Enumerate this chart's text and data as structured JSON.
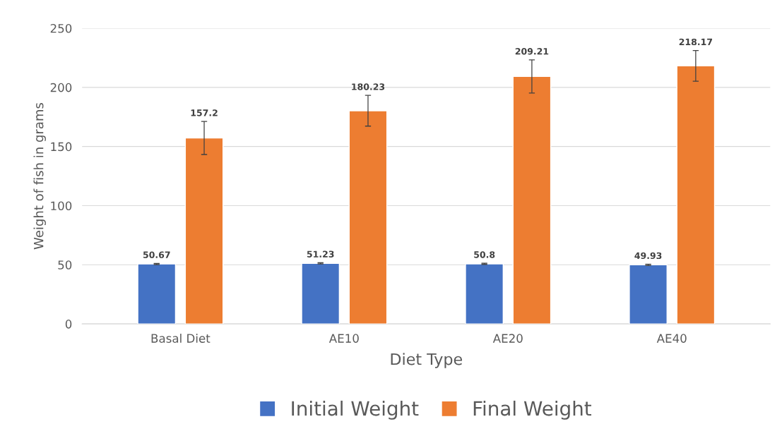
{
  "chart_data": {
    "type": "bar",
    "xlabel": "Diet Type",
    "ylabel": "Weight of fish in grams",
    "categories": [
      "Basal Diet",
      "AE10",
      "AE20",
      "AE40"
    ],
    "series": [
      {
        "name": "Initial Weight",
        "color": "#4472c4",
        "values": [
          50.67,
          51.23,
          50.8,
          49.93
        ],
        "errors": [
          0.5,
          0.5,
          0.5,
          0.5
        ]
      },
      {
        "name": "Final Weight",
        "color": "#ed7d31",
        "values": [
          157.2,
          180.23,
          209.21,
          218.17
        ],
        "errors": [
          14,
          13,
          14,
          13
        ]
      }
    ],
    "ylim": [
      0,
      250
    ],
    "yticks": [
      0,
      50,
      100,
      150,
      200,
      250
    ],
    "grid": "y",
    "legend": "bottom",
    "data_labels": true
  }
}
